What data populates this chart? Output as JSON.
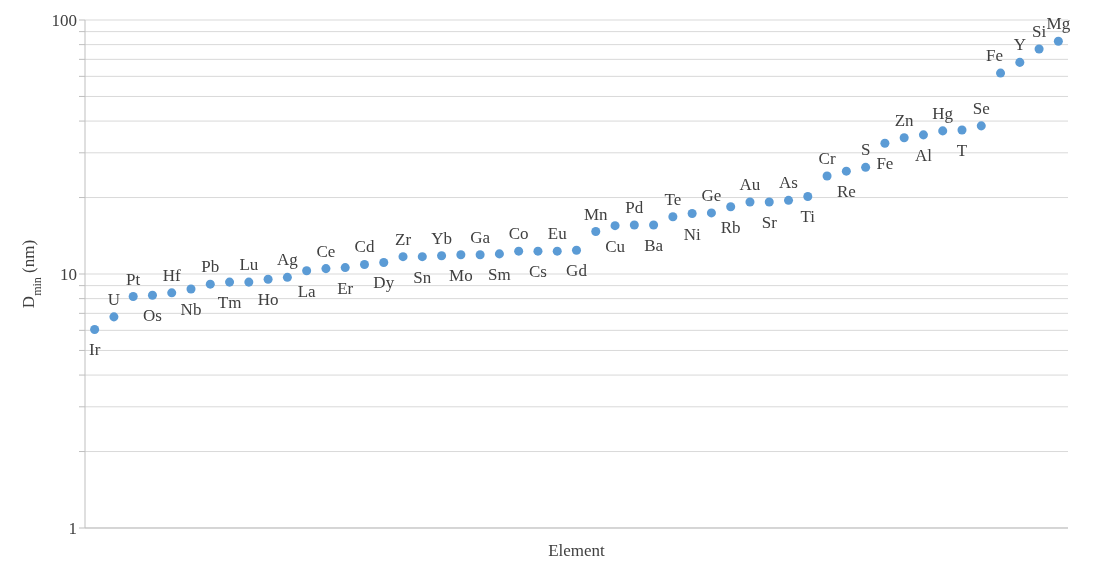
{
  "chart_data": {
    "type": "scatter",
    "xlabel": "Element",
    "ylabel": "D$_{min}$ (nm)",
    "categories": [
      null,
      null,
      null,
      null,
      null,
      null,
      null,
      null,
      null,
      null,
      null,
      null,
      null,
      null,
      null,
      null,
      null,
      null,
      null,
      null,
      null,
      null,
      null,
      null,
      null,
      null,
      null,
      null,
      null,
      null,
      null,
      null,
      null,
      null,
      null,
      null,
      null,
      null,
      null,
      null,
      null,
      null,
      null,
      null,
      null,
      null,
      null,
      null,
      null,
      null,
      null
    ],
    "series": [
      {
        "color": "#5b9bd5",
        "values": [
          6.05,
          6.78,
          8.15,
          8.25,
          8.43,
          8.73,
          9.12,
          9.29,
          9.29,
          9.53,
          9.7,
          10.3,
          10.5,
          10.6,
          10.9,
          11.1,
          11.7,
          11.7,
          11.8,
          11.9,
          11.9,
          12.0,
          12.3,
          12.3,
          12.3,
          12.4,
          14.7,
          15.5,
          15.6,
          15.6,
          16.8,
          17.3,
          17.4,
          18.4,
          19.2,
          19.2,
          19.5,
          20.2,
          24.3,
          25.4,
          26.3,
          32.7,
          34.4,
          35.3,
          36.6,
          36.9,
          38.3,
          61.8,
          68.1,
          76.9,
          82.5
        ],
        "value_labels": [
          "Ir",
          "U",
          "Pt",
          "Os",
          "Hf",
          "Nb",
          "Pb",
          "Tm",
          "Lu",
          "Ho",
          "Ag",
          "La",
          "Ce",
          "Er",
          "Cd",
          "Dy",
          "Zr",
          "Sn",
          "Yb",
          "Mo",
          "Ga",
          "Sm",
          "Co",
          "Cs",
          "Eu",
          "Gd",
          "Mn",
          "Cu",
          "Pd",
          "Ba",
          "Te",
          "Ni",
          "Ge",
          "Rb",
          "Au",
          "Sr",
          "As",
          "Ti",
          "Cr",
          "Re",
          "S",
          "Fe",
          "Zn",
          "Al",
          "Hg",
          "T",
          "Se",
          "Fe",
          "Y",
          "Si",
          "Mg"
        ]
      }
    ],
    "log": true,
    "ylim": [
      1,
      100
    ],
    "yticks": [
      1,
      {
        "value": 2,
        "label": null
      },
      {
        "value": 3,
        "label": null
      },
      {
        "value": 4,
        "label": null
      },
      {
        "value": 5,
        "label": null
      },
      {
        "value": 6,
        "label": null
      },
      {
        "value": 7,
        "label": null
      },
      {
        "value": 8,
        "label": null
      },
      {
        "value": 9,
        "label": null
      },
      10,
      {
        "value": 20,
        "label": null
      },
      {
        "value": 30,
        "label": null
      },
      {
        "value": 40,
        "label": null
      },
      {
        "value": 50,
        "label": null
      },
      {
        "value": 60,
        "label": null
      },
      {
        "value": 70,
        "label": null
      },
      {
        "value": 80,
        "label": null
      },
      {
        "value": 90,
        "label": null
      },
      100
    ],
    "grid": "y",
    "marker": "circle",
    "legend": false
  }
}
